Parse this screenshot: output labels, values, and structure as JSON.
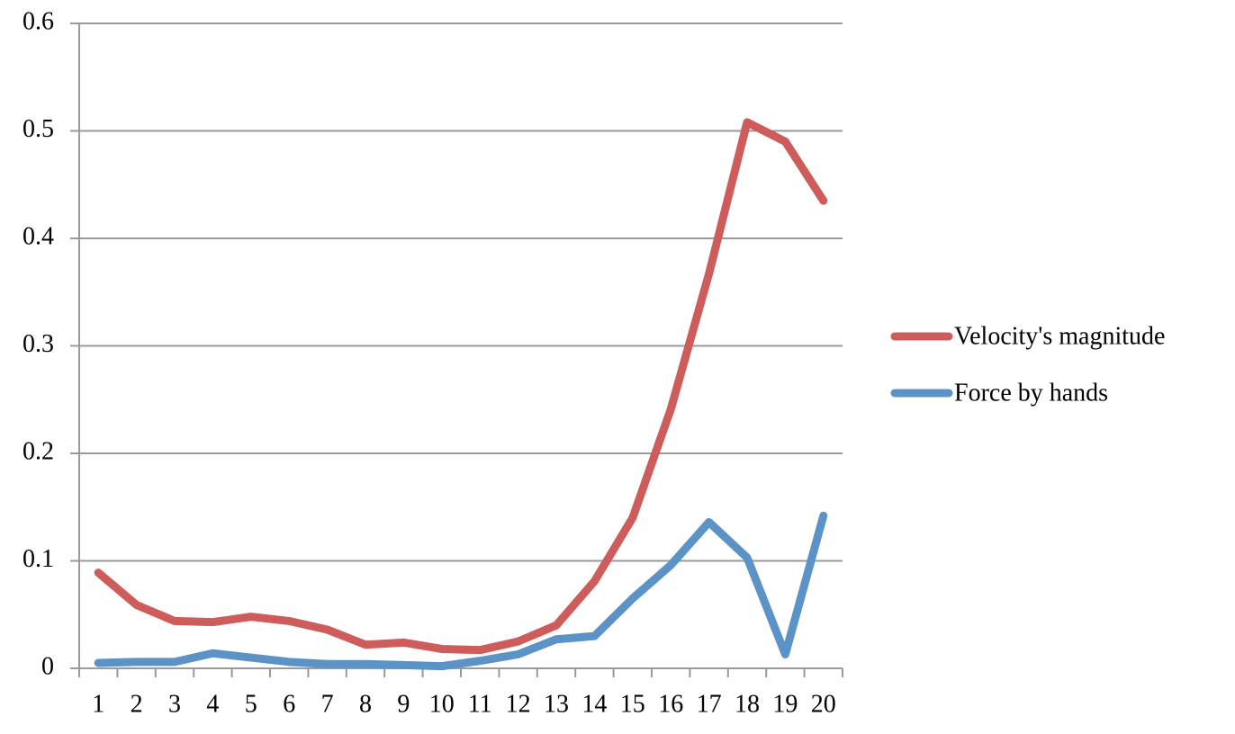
{
  "chart_data": {
    "type": "line",
    "categories": [
      "1",
      "2",
      "3",
      "4",
      "5",
      "6",
      "7",
      "8",
      "9",
      "10",
      "11",
      "12",
      "13",
      "14",
      "15",
      "16",
      "17",
      "18",
      "19",
      "20"
    ],
    "series": [
      {
        "name": "Velocity's magnitude",
        "color": "#cd5c5a",
        "values": [
          0.089,
          0.059,
          0.044,
          0.043,
          0.048,
          0.044,
          0.036,
          0.022,
          0.024,
          0.018,
          0.017,
          0.025,
          0.04,
          0.081,
          0.14,
          0.241,
          0.367,
          0.508,
          0.49,
          0.435
        ]
      },
      {
        "name": "Force by hands",
        "color": "#5b93c7",
        "values": [
          0.005,
          0.006,
          0.006,
          0.014,
          0.01,
          0.006,
          0.004,
          0.004,
          0.003,
          0.002,
          0.007,
          0.013,
          0.027,
          0.03,
          0.065,
          0.096,
          0.136,
          0.103,
          0.013,
          0.142
        ]
      }
    ],
    "ylim": [
      0,
      0.6
    ],
    "yticks": [
      0,
      0.1,
      0.2,
      0.3,
      0.4,
      0.5,
      0.6
    ],
    "grid": true,
    "legend": "right"
  }
}
